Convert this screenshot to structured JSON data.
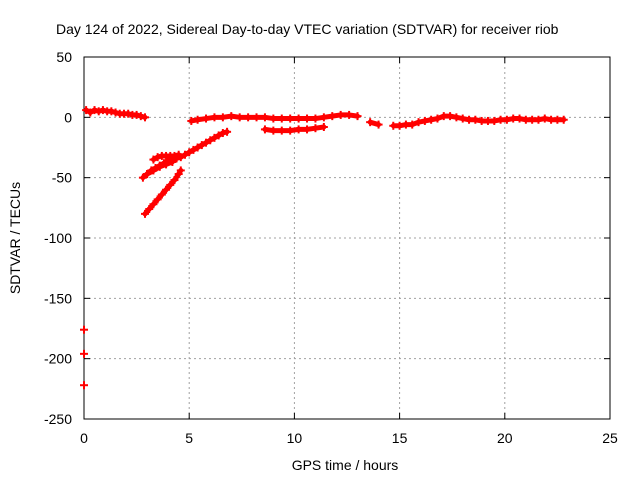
{
  "chart_data": {
    "type": "scatter",
    "title": "Day 124 of 2022, Sidereal Day-to-day VTEC variation (SDTVAR) for receiver riob",
    "xlabel": "GPS time / hours",
    "ylabel": "SDTVAR / TECUs",
    "xlim": [
      0,
      25
    ],
    "ylim": [
      -250,
      50
    ],
    "xticks": [
      0,
      5,
      10,
      15,
      20,
      25
    ],
    "yticks": [
      -250,
      -200,
      -150,
      -100,
      -50,
      0,
      50
    ],
    "grid": true,
    "marker_color": "#ff0000",
    "series": [
      {
        "name": "SDTVAR",
        "points": [
          [
            0.1,
            6
          ],
          [
            0.3,
            4
          ],
          [
            0.5,
            6
          ],
          [
            0.7,
            5
          ],
          [
            0.9,
            6
          ],
          [
            1.1,
            5
          ],
          [
            1.3,
            5
          ],
          [
            1.5,
            4
          ],
          [
            1.7,
            3
          ],
          [
            1.9,
            3
          ],
          [
            2.1,
            3
          ],
          [
            2.3,
            2
          ],
          [
            2.5,
            2
          ],
          [
            2.7,
            1
          ],
          [
            2.9,
            0
          ],
          [
            5.1,
            -3
          ],
          [
            5.4,
            -2
          ],
          [
            5.8,
            -1
          ],
          [
            6.2,
            0
          ],
          [
            6.6,
            0
          ],
          [
            7.0,
            1
          ],
          [
            7.4,
            0
          ],
          [
            7.8,
            0
          ],
          [
            8.2,
            0
          ],
          [
            8.6,
            0
          ],
          [
            9.0,
            -1
          ],
          [
            9.4,
            -1
          ],
          [
            9.8,
            -1
          ],
          [
            10.2,
            -1
          ],
          [
            10.6,
            -1
          ],
          [
            11.0,
            -1
          ],
          [
            11.4,
            0
          ],
          [
            11.8,
            1
          ],
          [
            12.2,
            2
          ],
          [
            12.6,
            2
          ],
          [
            13.0,
            1
          ],
          [
            8.6,
            -10
          ],
          [
            9.0,
            -11
          ],
          [
            9.4,
            -11
          ],
          [
            9.8,
            -11
          ],
          [
            10.2,
            -10
          ],
          [
            10.6,
            -10
          ],
          [
            11.0,
            -9
          ],
          [
            11.4,
            -8
          ],
          [
            13.6,
            -4
          ],
          [
            14.0,
            -6
          ],
          [
            14.7,
            -7
          ],
          [
            15.0,
            -7
          ],
          [
            15.3,
            -6
          ],
          [
            15.6,
            -6
          ],
          [
            15.9,
            -4
          ],
          [
            16.2,
            -3
          ],
          [
            16.5,
            -2
          ],
          [
            16.8,
            -1
          ],
          [
            17.1,
            1
          ],
          [
            17.4,
            1
          ],
          [
            17.7,
            0
          ],
          [
            18.0,
            -1
          ],
          [
            18.3,
            -2
          ],
          [
            18.6,
            -2
          ],
          [
            18.9,
            -3
          ],
          [
            19.2,
            -3
          ],
          [
            19.5,
            -3
          ],
          [
            19.8,
            -2
          ],
          [
            20.1,
            -2
          ],
          [
            20.4,
            -1
          ],
          [
            20.7,
            -1
          ],
          [
            21.0,
            -2
          ],
          [
            21.3,
            -2
          ],
          [
            21.6,
            -2
          ],
          [
            21.9,
            -1
          ],
          [
            22.2,
            -2
          ],
          [
            22.5,
            -2
          ],
          [
            22.8,
            -2
          ],
          [
            2.8,
            -50
          ],
          [
            3.0,
            -47
          ],
          [
            3.2,
            -44
          ],
          [
            3.4,
            -42
          ],
          [
            3.6,
            -40
          ],
          [
            3.8,
            -38
          ],
          [
            4.0,
            -36
          ],
          [
            4.2,
            -35
          ],
          [
            4.4,
            -34
          ],
          [
            4.6,
            -33
          ],
          [
            4.8,
            -31
          ],
          [
            5.0,
            -29
          ],
          [
            5.2,
            -27
          ],
          [
            5.4,
            -25
          ],
          [
            5.6,
            -23
          ],
          [
            5.8,
            -21
          ],
          [
            6.0,
            -19
          ],
          [
            6.2,
            -17
          ],
          [
            6.4,
            -15
          ],
          [
            6.6,
            -13
          ],
          [
            6.8,
            -12
          ],
          [
            3.3,
            -35
          ],
          [
            3.5,
            -33
          ],
          [
            3.7,
            -32
          ],
          [
            3.9,
            -32
          ],
          [
            4.1,
            -32
          ],
          [
            4.3,
            -32
          ],
          [
            4.5,
            -31
          ],
          [
            2.9,
            -80
          ],
          [
            3.1,
            -76
          ],
          [
            3.3,
            -72
          ],
          [
            3.5,
            -68
          ],
          [
            3.7,
            -64
          ],
          [
            3.9,
            -60
          ],
          [
            4.1,
            -56
          ],
          [
            4.3,
            -52
          ],
          [
            4.5,
            -47
          ],
          [
            4.6,
            -44
          ],
          [
            3.0,
            -47
          ],
          [
            3.3,
            -44
          ],
          [
            3.6,
            -41
          ],
          [
            3.9,
            -39
          ],
          [
            4.2,
            -37
          ],
          [
            0.0,
            -176
          ],
          [
            0.0,
            -196
          ],
          [
            0.0,
            -222
          ]
        ]
      }
    ]
  }
}
